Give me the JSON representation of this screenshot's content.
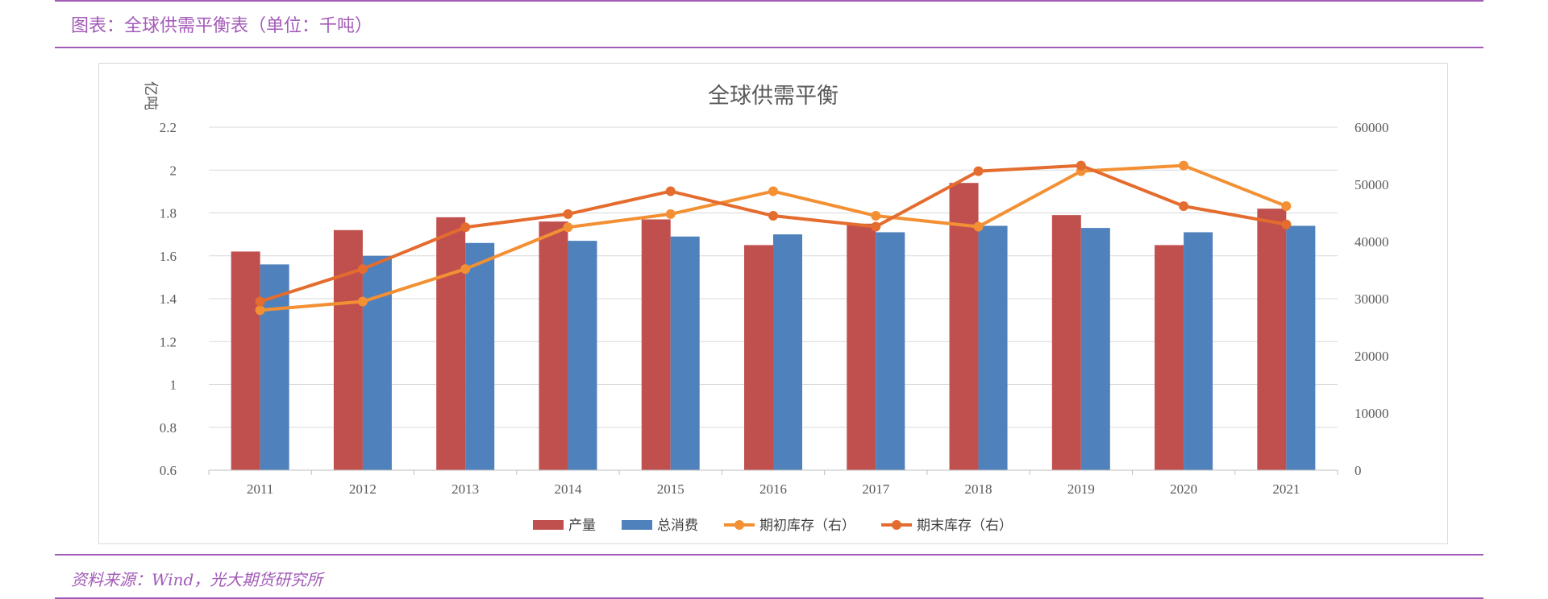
{
  "header": {
    "title": "图表：全球供需平衡表（单位：千吨）"
  },
  "footer": {
    "source": "资料来源：Wind，光大期货研究所"
  },
  "chart_data": {
    "type": "bar",
    "title": "全球供需平衡",
    "ylabel": "亿吨",
    "ylim": [
      0.6,
      2.2
    ],
    "y_ticks": [
      "0.6",
      "0.8",
      "1",
      "1.2",
      "1.4",
      "1.6",
      "1.8",
      "2",
      "2.2"
    ],
    "y2lim": [
      0,
      60000
    ],
    "y2_ticks": [
      "0",
      "10000",
      "20000",
      "30000",
      "40000",
      "50000",
      "60000"
    ],
    "categories": [
      "2011",
      "2012",
      "2013",
      "2014",
      "2015",
      "2016",
      "2017",
      "2018",
      "2019",
      "2020",
      "2021"
    ],
    "series": [
      {
        "name": "产量",
        "type": "bar",
        "axis": "left",
        "color": "#c0504d",
        "values": [
          1.62,
          1.72,
          1.78,
          1.76,
          1.77,
          1.65,
          1.75,
          1.94,
          1.79,
          1.65,
          1.82
        ]
      },
      {
        "name": "总消费",
        "type": "bar",
        "axis": "left",
        "color": "#4f81bd",
        "values": [
          1.56,
          1.6,
          1.66,
          1.67,
          1.69,
          1.7,
          1.71,
          1.74,
          1.73,
          1.71,
          1.74
        ]
      },
      {
        "name": "期初库存（右）",
        "type": "line",
        "axis": "right",
        "color": "#f39034",
        "values": [
          28000,
          29500,
          35200,
          42500,
          44800,
          48800,
          44500,
          42600,
          52300,
          53300,
          46200
        ]
      },
      {
        "name": "期末库存（右）",
        "type": "line",
        "axis": "right",
        "color": "#e46c2e",
        "values": [
          29500,
          35200,
          42500,
          44800,
          48800,
          44500,
          42600,
          52300,
          53300,
          46200,
          43000
        ]
      }
    ],
    "legend_position": "bottom",
    "grid": true
  }
}
